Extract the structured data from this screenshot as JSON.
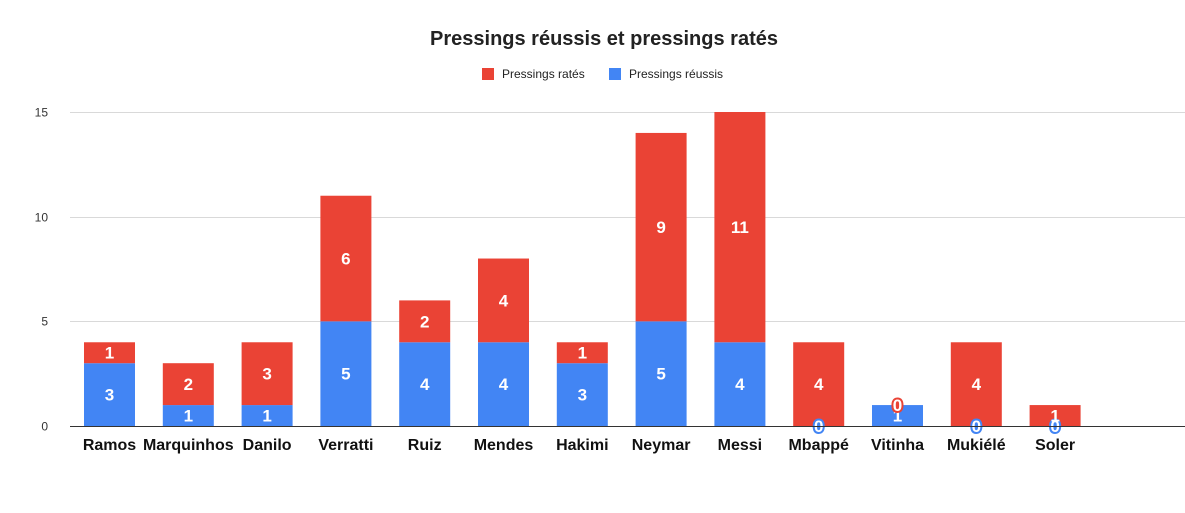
{
  "chart_data": {
    "type": "bar",
    "stacked": true,
    "title": "Pressings réussis et pressings ratés",
    "xlabel": "",
    "ylabel": "",
    "categories": [
      "Ramos",
      "Marquinhos",
      "Danilo",
      "Verratti",
      "Ruiz",
      "Mendes",
      "Hakimi",
      "Neymar",
      "Messi",
      "Mbappé",
      "Vitinha",
      "Mukiélé",
      "Soler"
    ],
    "series": [
      {
        "name": "Pressings réussis",
        "color": "#4285f4",
        "values": [
          3,
          1,
          1,
          5,
          4,
          4,
          3,
          5,
          4,
          0,
          1,
          0,
          0
        ]
      },
      {
        "name": "Pressings ratés",
        "color": "#ea4335",
        "values": [
          1,
          2,
          3,
          6,
          2,
          4,
          1,
          9,
          11,
          4,
          0,
          4,
          1
        ]
      }
    ],
    "legend_order": [
      "Pressings ratés",
      "Pressings réussis"
    ],
    "legend_position": "top",
    "ylim": [
      0,
      15
    ],
    "yticks": [
      0,
      5,
      10,
      15
    ],
    "grid": true,
    "data_labels": true
  }
}
